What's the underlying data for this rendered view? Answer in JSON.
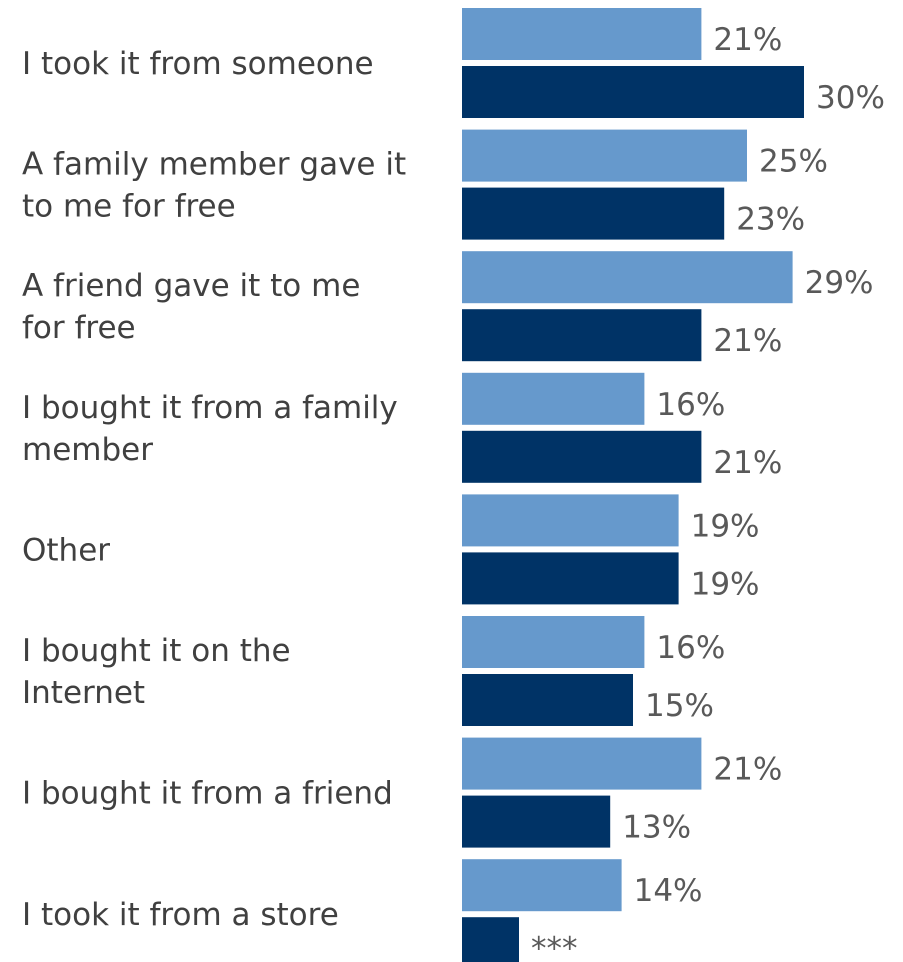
{
  "chart_data": {
    "type": "bar",
    "orientation": "horizontal",
    "categories": [
      [
        "I took it from someone"
      ],
      [
        "A family member gave it",
        "to me for free"
      ],
      [
        "A friend gave it to me",
        "for free"
      ],
      [
        "I bought it from a family",
        "member"
      ],
      [
        "Other"
      ],
      [
        "I bought it on the",
        "Internet"
      ],
      [
        "I bought it from a friend"
      ],
      [
        "I took it from a store"
      ]
    ],
    "series": [
      {
        "color": "#6699cc",
        "values": [
          21,
          25,
          29,
          16,
          19,
          16,
          21,
          14
        ],
        "labels": [
          "21%",
          "25%",
          "29%",
          "16%",
          "19%",
          "16%",
          "21%",
          "14%"
        ]
      },
      {
        "color": "#003366",
        "values": [
          30,
          23,
          21,
          21,
          19,
          15,
          13,
          5
        ],
        "labels": [
          "30%",
          "23%",
          "21%",
          "21%",
          "19%",
          "15%",
          "13%",
          "***"
        ]
      }
    ],
    "xlim": [
      0,
      30
    ],
    "grid": false,
    "legend": "none"
  }
}
